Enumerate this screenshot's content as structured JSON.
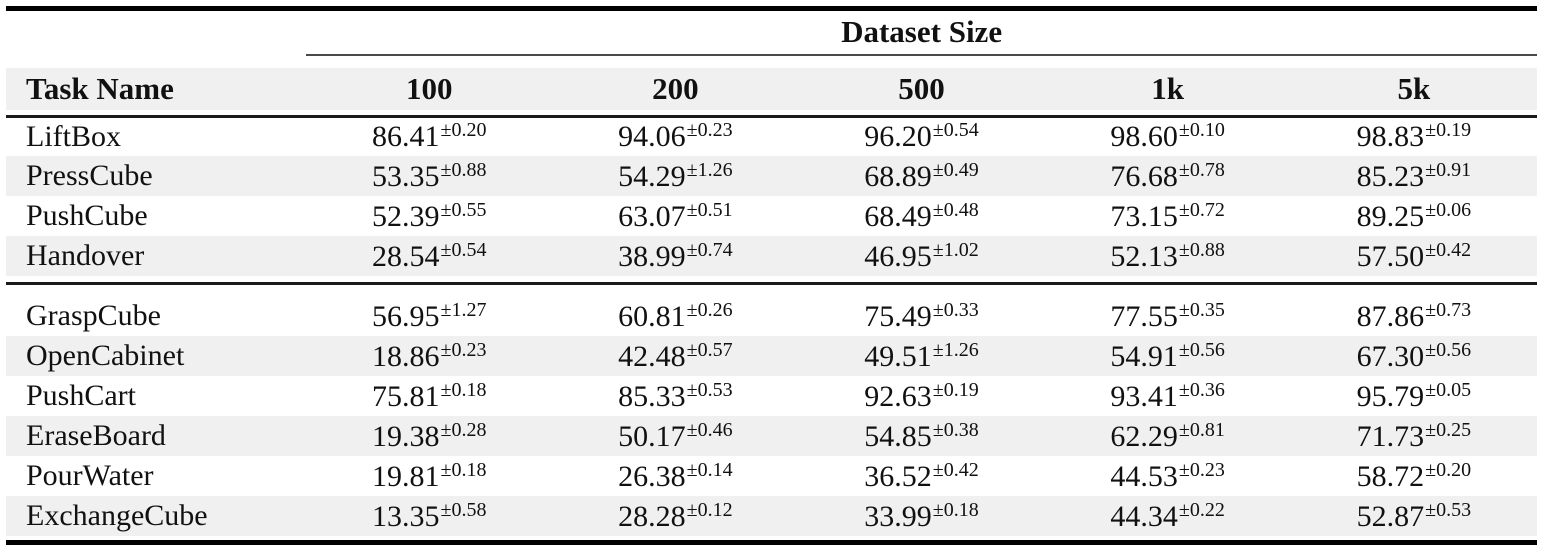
{
  "table": {
    "group_header": "Dataset Size",
    "task_col_header": "Task Name",
    "columns": [
      "100",
      "200",
      "500",
      "1k",
      "5k"
    ],
    "plus_minus": "±",
    "groups": [
      {
        "rows": [
          {
            "task": "LiftBox",
            "values": [
              {
                "mean": "86.41",
                "std": "0.20"
              },
              {
                "mean": "94.06",
                "std": "0.23"
              },
              {
                "mean": "96.20",
                "std": "0.54"
              },
              {
                "mean": "98.60",
                "std": "0.10"
              },
              {
                "mean": "98.83",
                "std": "0.19"
              }
            ]
          },
          {
            "task": "PressCube",
            "values": [
              {
                "mean": "53.35",
                "std": "0.88"
              },
              {
                "mean": "54.29",
                "std": "1.26"
              },
              {
                "mean": "68.89",
                "std": "0.49"
              },
              {
                "mean": "76.68",
                "std": "0.78"
              },
              {
                "mean": "85.23",
                "std": "0.91"
              }
            ]
          },
          {
            "task": "PushCube",
            "values": [
              {
                "mean": "52.39",
                "std": "0.55"
              },
              {
                "mean": "63.07",
                "std": "0.51"
              },
              {
                "mean": "68.49",
                "std": "0.48"
              },
              {
                "mean": "73.15",
                "std": "0.72"
              },
              {
                "mean": "89.25",
                "std": "0.06"
              }
            ]
          },
          {
            "task": "Handover",
            "values": [
              {
                "mean": "28.54",
                "std": "0.54"
              },
              {
                "mean": "38.99",
                "std": "0.74"
              },
              {
                "mean": "46.95",
                "std": "1.02"
              },
              {
                "mean": "52.13",
                "std": "0.88"
              },
              {
                "mean": "57.50",
                "std": "0.42"
              }
            ]
          }
        ]
      },
      {
        "rows": [
          {
            "task": "GraspCube",
            "values": [
              {
                "mean": "56.95",
                "std": "1.27"
              },
              {
                "mean": "60.81",
                "std": "0.26"
              },
              {
                "mean": "75.49",
                "std": "0.33"
              },
              {
                "mean": "77.55",
                "std": "0.35"
              },
              {
                "mean": "87.86",
                "std": "0.73"
              }
            ]
          },
          {
            "task": "OpenCabinet",
            "values": [
              {
                "mean": "18.86",
                "std": "0.23"
              },
              {
                "mean": "42.48",
                "std": "0.57"
              },
              {
                "mean": "49.51",
                "std": "1.26"
              },
              {
                "mean": "54.91",
                "std": "0.56"
              },
              {
                "mean": "67.30",
                "std": "0.56"
              }
            ]
          },
          {
            "task": "PushCart",
            "values": [
              {
                "mean": "75.81",
                "std": "0.18"
              },
              {
                "mean": "85.33",
                "std": "0.53"
              },
              {
                "mean": "92.63",
                "std": "0.19"
              },
              {
                "mean": "93.41",
                "std": "0.36"
              },
              {
                "mean": "95.79",
                "std": "0.05"
              }
            ]
          },
          {
            "task": "EraseBoard",
            "values": [
              {
                "mean": "19.38",
                "std": "0.28"
              },
              {
                "mean": "50.17",
                "std": "0.46"
              },
              {
                "mean": "54.85",
                "std": "0.38"
              },
              {
                "mean": "62.29",
                "std": "0.81"
              },
              {
                "mean": "71.73",
                "std": "0.25"
              }
            ]
          },
          {
            "task": "PourWater",
            "values": [
              {
                "mean": "19.81",
                "std": "0.18"
              },
              {
                "mean": "26.38",
                "std": "0.14"
              },
              {
                "mean": "36.52",
                "std": "0.42"
              },
              {
                "mean": "44.53",
                "std": "0.23"
              },
              {
                "mean": "58.72",
                "std": "0.20"
              }
            ]
          },
          {
            "task": "ExchangeCube",
            "values": [
              {
                "mean": "13.35",
                "std": "0.58"
              },
              {
                "mean": "28.28",
                "std": "0.12"
              },
              {
                "mean": "33.99",
                "std": "0.18"
              },
              {
                "mean": "44.34",
                "std": "0.22"
              },
              {
                "mean": "52.87",
                "std": "0.53"
              }
            ]
          }
        ]
      }
    ]
  },
  "colors": {
    "stripe": "#f0f0f0",
    "rule_heavy": "#000000",
    "rule_medium": "#1a1a1a",
    "rule_light": "#4a4a4a",
    "text": "#111111"
  },
  "chart_data": {
    "type": "table",
    "title": "Dataset Size",
    "columns": [
      "Task Name",
      "100",
      "200",
      "500",
      "1k",
      "5k"
    ],
    "rows": [
      {
        "task": "LiftBox",
        "means": [
          86.41,
          94.06,
          96.2,
          98.6,
          98.83
        ],
        "stds": [
          0.2,
          0.23,
          0.54,
          0.1,
          0.19
        ]
      },
      {
        "task": "PressCube",
        "means": [
          53.35,
          54.29,
          68.89,
          76.68,
          85.23
        ],
        "stds": [
          0.88,
          1.26,
          0.49,
          0.78,
          0.91
        ]
      },
      {
        "task": "PushCube",
        "means": [
          52.39,
          63.07,
          68.49,
          73.15,
          89.25
        ],
        "stds": [
          0.55,
          0.51,
          0.48,
          0.72,
          0.06
        ]
      },
      {
        "task": "Handover",
        "means": [
          28.54,
          38.99,
          46.95,
          52.13,
          57.5
        ],
        "stds": [
          0.54,
          0.74,
          1.02,
          0.88,
          0.42
        ]
      },
      {
        "task": "GraspCube",
        "means": [
          56.95,
          60.81,
          75.49,
          77.55,
          87.86
        ],
        "stds": [
          1.27,
          0.26,
          0.33,
          0.35,
          0.73
        ]
      },
      {
        "task": "OpenCabinet",
        "means": [
          18.86,
          42.48,
          49.51,
          54.91,
          67.3
        ],
        "stds": [
          0.23,
          0.57,
          1.26,
          0.56,
          0.56
        ]
      },
      {
        "task": "PushCart",
        "means": [
          75.81,
          85.33,
          92.63,
          93.41,
          95.79
        ],
        "stds": [
          0.18,
          0.53,
          0.19,
          0.36,
          0.05
        ]
      },
      {
        "task": "EraseBoard",
        "means": [
          19.38,
          50.17,
          54.85,
          62.29,
          71.73
        ],
        "stds": [
          0.28,
          0.46,
          0.38,
          0.81,
          0.25
        ]
      },
      {
        "task": "PourWater",
        "means": [
          19.81,
          26.38,
          36.52,
          44.53,
          58.72
        ],
        "stds": [
          0.18,
          0.14,
          0.42,
          0.23,
          0.2
        ]
      },
      {
        "task": "ExchangeCube",
        "means": [
          13.35,
          28.28,
          33.99,
          44.34,
          52.87
        ],
        "stds": [
          0.58,
          0.12,
          0.18,
          0.22,
          0.53
        ]
      }
    ],
    "group_split_after_row": 4,
    "striped_rows": true
  }
}
